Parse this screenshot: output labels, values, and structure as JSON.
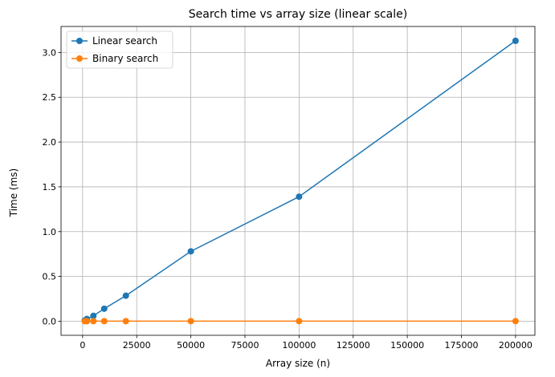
{
  "chart_data": {
    "type": "line",
    "title": "Search time vs array size (linear scale)",
    "xlabel": "Array size (n)",
    "ylabel": "Time (ms)",
    "x": [
      1000,
      2000,
      5000,
      10000,
      20000,
      50000,
      100000,
      200000
    ],
    "xlim": [
      -9950,
      208950
    ],
    "ylim": [
      -0.157,
      3.29
    ],
    "xticks": [
      0,
      25000,
      50000,
      75000,
      100000,
      125000,
      150000,
      175000,
      200000
    ],
    "yticks": [
      0.0,
      0.5,
      1.0,
      1.5,
      2.0,
      2.5,
      3.0
    ],
    "xtick_labels": [
      "0",
      "25000",
      "50000",
      "75000",
      "100000",
      "125000",
      "150000",
      "175000",
      "200000"
    ],
    "ytick_labels": [
      "0.0",
      "0.5",
      "1.0",
      "1.5",
      "2.0",
      "2.5",
      "3.0"
    ],
    "grid": true,
    "legend_position": "top-left",
    "series": [
      {
        "name": "Linear search",
        "color": "#1f77b4",
        "values": [
          0.01,
          0.025,
          0.06,
          0.14,
          0.285,
          0.78,
          1.39,
          3.13
        ]
      },
      {
        "name": "Binary search",
        "color": "#ff7f0e",
        "values": [
          0.0005,
          0.0006,
          0.0007,
          0.0008,
          0.0009,
          0.001,
          0.0012,
          0.0013
        ]
      }
    ]
  }
}
